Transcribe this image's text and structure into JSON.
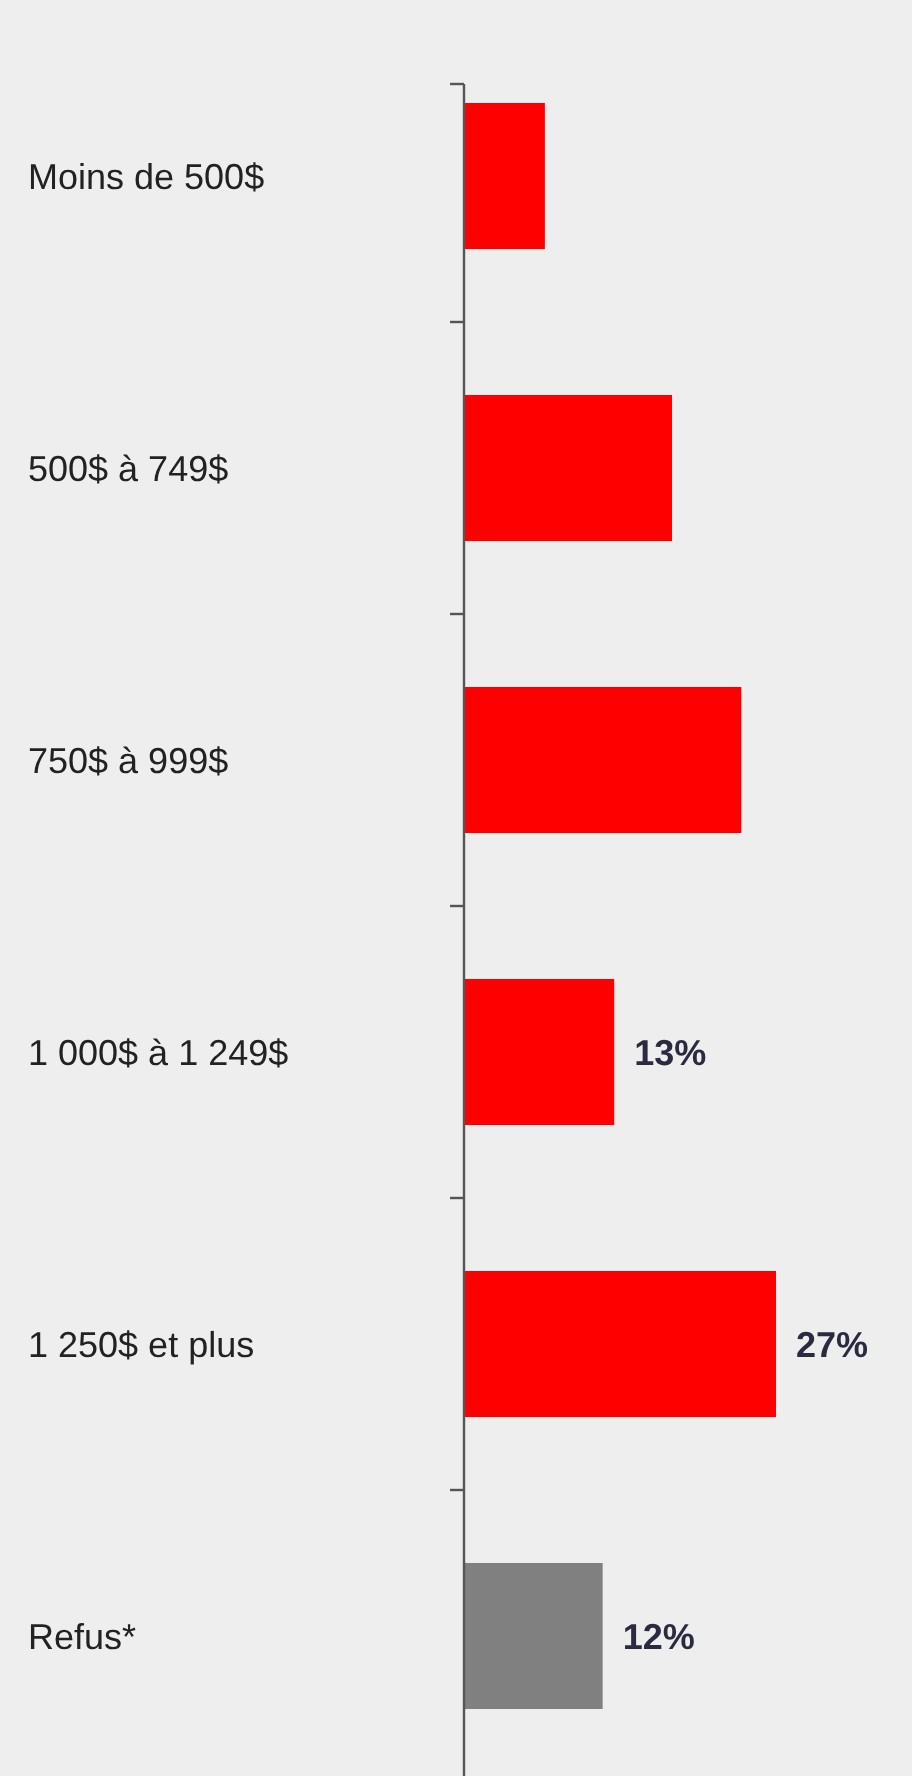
{
  "chart_data": {
    "type": "bar",
    "orientation": "horizontal",
    "categories": [
      "Moins de 500$",
      "500$ à 749$",
      "750$ à 999$",
      "1 000$ à 1 249$",
      "1 250$ et plus",
      "Refus*"
    ],
    "values": [
      7,
      18,
      24,
      13,
      27,
      12
    ],
    "colors": [
      "#ff0000",
      "#ff0000",
      "#ff0000",
      "#ff0000",
      "#ff0000",
      "#808080"
    ],
    "value_labels": [
      null,
      null,
      null,
      "13%",
      "27%",
      "12%"
    ]
  }
}
